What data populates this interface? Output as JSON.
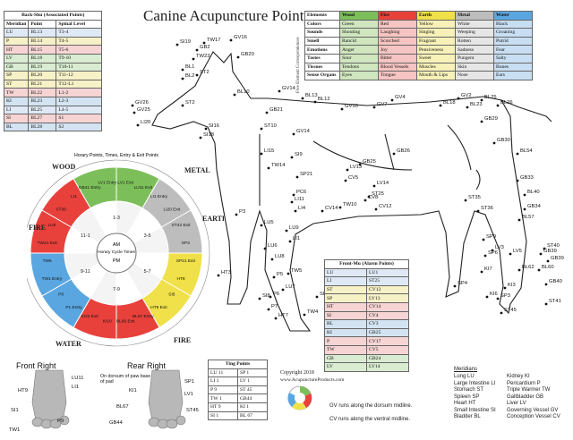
{
  "title": "Canine Acupuncture Points",
  "back_shu": {
    "caption": "Back-Shu (Associated Points)",
    "headers": [
      "Meridian",
      "Point",
      "Spinal Level"
    ],
    "rows": [
      [
        "LU",
        "BL13",
        "T3-4"
      ],
      [
        "P",
        "BL14",
        "T4-5"
      ],
      [
        "HT",
        "BL15",
        "T5-6"
      ],
      [
        "LV",
        "BL18",
        "T9-10"
      ],
      [
        "GB",
        "BL19",
        "T10-11"
      ],
      [
        "SP",
        "BL20",
        "T11-12"
      ],
      [
        "ST",
        "BL21",
        "T12-L1"
      ],
      [
        "TW",
        "BL22",
        "L1-2"
      ],
      [
        "KI",
        "BL23",
        "L2-3"
      ],
      [
        "LI",
        "BL25",
        "L4-5"
      ],
      [
        "SI",
        "BL27",
        "S1"
      ],
      [
        "BL",
        "BL28",
        "S2"
      ]
    ],
    "row_colors": [
      "#dfe9f5",
      "#f6f0c8",
      "#f6d4d4",
      "#d9ecd1",
      "#d9ecd1",
      "#f7f1c7",
      "#f7f1c7",
      "#f6d4d4",
      "#d3e3f1",
      "#dfe9f5",
      "#f6d4d4",
      "#d3e3f1"
    ]
  },
  "five_elements": {
    "side_label": "Five Element Correspondences",
    "headers": [
      "Elements",
      "Wood",
      "Fire",
      "Earth",
      "Metal",
      "Water"
    ],
    "header_colors": [
      "#ffffff",
      "#7cbf5a",
      "#e8413c",
      "#f0e04a",
      "#bdbdbd",
      "#5aa6e0"
    ],
    "rows": [
      [
        "Colors",
        "Green",
        "Red",
        "Yellow",
        "White",
        "Black"
      ],
      [
        "Sounds",
        "Shouting",
        "Laughing",
        "Singing",
        "Weeping",
        "Groaning"
      ],
      [
        "Smell",
        "Rancid",
        "Scorched",
        "Fragrant",
        "Rotten",
        "Putrid"
      ],
      [
        "Emotions",
        "Anger",
        "Joy",
        "Pensiveness",
        "Sadness",
        "Fear"
      ],
      [
        "Tastes",
        "Sour",
        "Bitter",
        "Sweet",
        "Pungent",
        "Salty"
      ],
      [
        "Tissues",
        "Tendons",
        "Blood Vessels",
        "Muscles",
        "Skin",
        "Bones"
      ],
      [
        "Sense Organs",
        "Eyes",
        "Tongue",
        "Mouth & Lips",
        "Nose",
        "Ears"
      ]
    ],
    "cell_colors": [
      "#ffffff",
      "#cfe6bf",
      "#f6c4c2",
      "#f7f1b8",
      "#e6e6e6",
      "#c8dff3"
    ]
  },
  "horary": {
    "ring_title": "Horary Points, Times, Entry & Exit Points",
    "inner_title": "Horary Cycle Times",
    "center_am": "AM",
    "center_pm": "PM",
    "element_labels": {
      "wood": "WOOD",
      "metal": "METAL",
      "earth": "EARTH",
      "fire_left": "FIRE",
      "fire_bottom": "FIRE",
      "water": "WATER"
    },
    "segment_labels": [
      "GB41 Entry",
      "LV1 Entry",
      "LV1 Exit",
      "LU11 Exit",
      "LI1 Entry",
      "LI20 Exit",
      "ST42 Exit",
      "SP3",
      "SP21 Exit",
      "HT8",
      "SI5",
      "HT9 Exit",
      "BL67 Entry",
      "BL66 Exit",
      "KI10",
      "KI22 Exit",
      "P1 Entry",
      "P8",
      "TW1 Entry",
      "TW6",
      "TW21 Exit",
      "LU8",
      "ST36",
      "LI1",
      "SI19",
      "BL1 Entry",
      "KI1",
      "P9",
      "GB1",
      "LV14"
    ],
    "time_labels": [
      "1-3",
      "3-5",
      "5-7",
      "7-9",
      "9-11",
      "11-1"
    ]
  },
  "dog_points": [
    "SI19",
    "TW17",
    "GV16",
    "GB20",
    "TW23",
    "GB2",
    "BL1",
    "BL2",
    "ST2",
    "BL10",
    "GV14",
    "GV26",
    "LI20",
    "ST2",
    "GV25",
    "SI16",
    "BL12",
    "GV10",
    "GV7",
    "GV4",
    "GV2",
    "BL25",
    "GB21",
    "SI18",
    "ST10",
    "BL13",
    "GV14",
    "BL18",
    "BL23",
    "BL26",
    "GB29",
    "GB30",
    "SI9",
    "LI15",
    "TW14",
    "LI11",
    "PC6",
    "SP21",
    "LV13",
    "GB25",
    "GB26",
    "LV14",
    "CV5",
    "CV8",
    "CV12",
    "TW10",
    "LI4",
    "LU9",
    "LI1",
    "CV14",
    "ST25",
    "BL54",
    "BL40",
    "BL57",
    "GB33",
    "GB34",
    "ST35",
    "ST36",
    "LV3",
    "KI3",
    "BL60",
    "GB40",
    "ST41",
    "SP6",
    "SP3",
    "TW5",
    "HT7",
    "TW4",
    "SI6",
    "LU7",
    "P7",
    "P6",
    "P5",
    "P3",
    "LU5",
    "LU6",
    "LU8",
    "HT3",
    "SI8",
    "ST40",
    "ST45",
    "KI7",
    "SP4",
    "GB39",
    "KI6",
    "SP9",
    "BL62",
    "GB39",
    "LV5"
  ],
  "front_mu": {
    "caption": "Front-Mu (Alarm Points)",
    "rows": [
      [
        "LU",
        "LU1"
      ],
      [
        "LI",
        "ST25"
      ],
      [
        "ST",
        "CV12"
      ],
      [
        "SP",
        "LV13"
      ],
      [
        "HT",
        "CV14"
      ],
      [
        "SI",
        "CV4"
      ],
      [
        "BL",
        "CV3"
      ],
      [
        "KI",
        "GB25"
      ],
      [
        "P",
        "CV17"
      ],
      [
        "TW",
        "CV5"
      ],
      [
        "GB",
        "GB24"
      ],
      [
        "LV",
        "LV14"
      ]
    ],
    "row_colors": [
      "#dfe9f5",
      "#dfe9f5",
      "#f7f1c7",
      "#f7f1c7",
      "#f6d4d4",
      "#f6d4d4",
      "#d3e3f1",
      "#d3e3f1",
      "#f6d4d4",
      "#f6d4d4",
      "#d9ecd1",
      "#d9ecd1"
    ]
  },
  "ting": {
    "caption": "Ting Points",
    "rows": [
      [
        "LU 11",
        "SP 1"
      ],
      [
        "LI 1",
        "LV 1"
      ],
      [
        "P 9",
        "ST 45"
      ],
      [
        "TW 1",
        "GB44"
      ],
      [
        "HT 9",
        "KI 1"
      ],
      [
        "SI 1",
        "BL 67"
      ]
    ]
  },
  "paws": {
    "front_title": "Front Right",
    "rear_title": "Rear Right",
    "rear_note": "On dorsum of paw base of pad",
    "front_points": [
      "HT9",
      "LU11",
      "SI1",
      "P9",
      "TW1",
      "LI1"
    ],
    "rear_points": [
      "KI1",
      "SP1",
      "BL67",
      "ST45",
      "GB44",
      "LV1"
    ]
  },
  "copyright": {
    "line1": "Copyright 2018",
    "line2": "www.AcupunctureProducts.com"
  },
  "notes": {
    "gv": "GV runs along the dorsum midline.",
    "cv": "CV runs along the ventral midline."
  },
  "meridians": {
    "title": "Meridians",
    "left": [
      "Lung LU",
      "Large Intestine LI",
      "Stomach ST",
      "Spleen SP",
      "Heart HT",
      "Small Intestine SI",
      "Bladder BL"
    ],
    "right": [
      "Kidney KI",
      "Pericardium P",
      "Triple Warmer TW",
      "Gallbladder GB",
      "Liver LV",
      "Governing Vessel GV",
      "Conception Vessel CV"
    ]
  },
  "colors": {
    "wood": "#7cbf5a",
    "fire": "#e8413c",
    "earth": "#f0e04a",
    "metal": "#bdbdbd",
    "water": "#5aa6e0",
    "point": "#111111"
  }
}
